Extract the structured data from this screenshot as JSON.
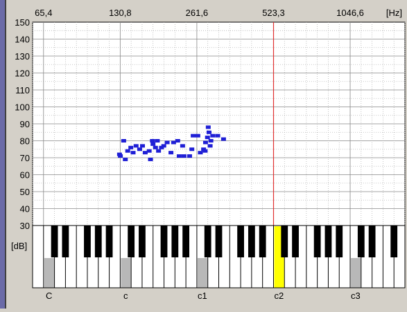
{
  "window_strip": {
    "left_color": "#6b6ba8"
  },
  "colors": {
    "background": "#d4d0c8",
    "plot_bg": "#ffffff",
    "grid": "#888888",
    "marker": "#1f1fd6",
    "highlight_line": "#e03030",
    "highlight_key": "#ffff00",
    "grey_key": "#b8b8b8",
    "black_key": "#000000"
  },
  "chart_data": {
    "type": "scatter",
    "title": "",
    "xlabel": "",
    "ylabel": "[dB]",
    "x_unit_label": "[Hz]",
    "x_scale": "log2",
    "top_tick_labels": [
      "65,4",
      "130,8",
      "261,6",
      "523,3",
      "1046,6"
    ],
    "y_ticks": [
      150,
      140,
      130,
      120,
      110,
      100,
      90,
      80,
      70,
      60,
      50,
      40,
      30
    ],
    "ylim": [
      30,
      150
    ],
    "xlim_hz": [
      55,
      1650
    ],
    "highlight_frequency_hz": 523.3,
    "octave_labels": [
      "C",
      "c",
      "c1",
      "c2",
      "c3"
    ],
    "grid": true,
    "series": [
      {
        "points": [
          {
            "hz": 130,
            "db": 72
          },
          {
            "hz": 131,
            "db": 71
          },
          {
            "hz": 135,
            "db": 80
          },
          {
            "hz": 137,
            "db": 69
          },
          {
            "hz": 140,
            "db": 74
          },
          {
            "hz": 144,
            "db": 76
          },
          {
            "hz": 147,
            "db": 73
          },
          {
            "hz": 151,
            "db": 77
          },
          {
            "hz": 156,
            "db": 75
          },
          {
            "hz": 160,
            "db": 77
          },
          {
            "hz": 164,
            "db": 73
          },
          {
            "hz": 170,
            "db": 74
          },
          {
            "hz": 172,
            "db": 69
          },
          {
            "hz": 175,
            "db": 80
          },
          {
            "hz": 176,
            "db": 78
          },
          {
            "hz": 180,
            "db": 76
          },
          {
            "hz": 183,
            "db": 80
          },
          {
            "hz": 185,
            "db": 74
          },
          {
            "hz": 190,
            "db": 76
          },
          {
            "hz": 194,
            "db": 77
          },
          {
            "hz": 200,
            "db": 79
          },
          {
            "hz": 207,
            "db": 73
          },
          {
            "hz": 212,
            "db": 79
          },
          {
            "hz": 220,
            "db": 80
          },
          {
            "hz": 223,
            "db": 71
          },
          {
            "hz": 230,
            "db": 77
          },
          {
            "hz": 233,
            "db": 71
          },
          {
            "hz": 245,
            "db": 71
          },
          {
            "hz": 250,
            "db": 75
          },
          {
            "hz": 253,
            "db": 83
          },
          {
            "hz": 264,
            "db": 83
          },
          {
            "hz": 270,
            "db": 73
          },
          {
            "hz": 278,
            "db": 75
          },
          {
            "hz": 282,
            "db": 74
          },
          {
            "hz": 283,
            "db": 79
          },
          {
            "hz": 288,
            "db": 82
          },
          {
            "hz": 290,
            "db": 88
          },
          {
            "hz": 292,
            "db": 85
          },
          {
            "hz": 295,
            "db": 77
          },
          {
            "hz": 297,
            "db": 80
          },
          {
            "hz": 302,
            "db": 83
          },
          {
            "hz": 316,
            "db": 83
          },
          {
            "hz": 333,
            "db": 81
          }
        ]
      }
    ]
  }
}
